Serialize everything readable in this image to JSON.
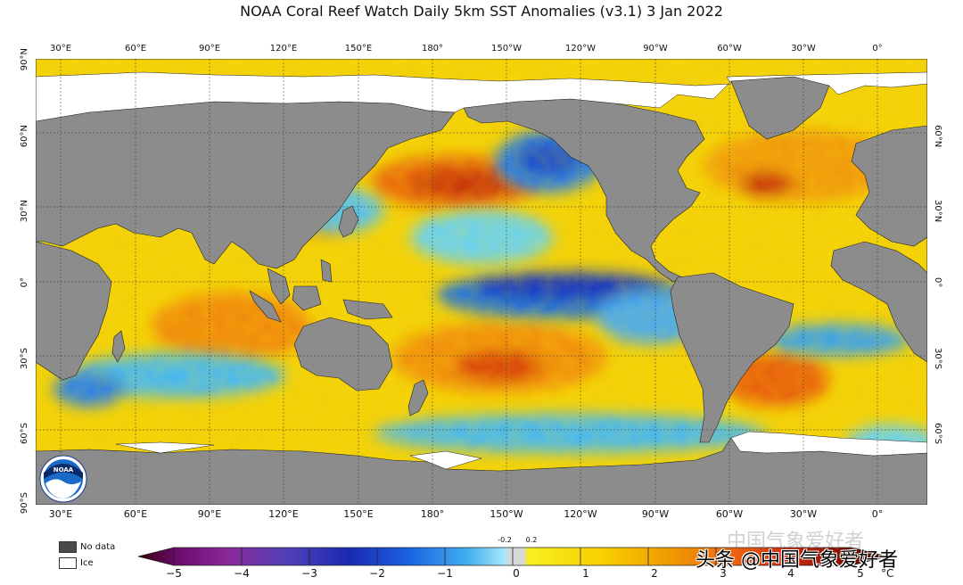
{
  "title": "NOAA Coral Reef Watch Daily 5km SST Anomalies  (v3.1)   3 Jan 2022",
  "map": {
    "lon_labels_top": [
      "30°E",
      "60°E",
      "90°E",
      "120°E",
      "150°E",
      "180°",
      "150°W",
      "120°W",
      "90°W",
      "60°W",
      "30°W",
      "0°"
    ],
    "lon_labels_bottom": [
      "30°E",
      "60°E",
      "90°E",
      "120°E",
      "150°E",
      "180°",
      "150°W",
      "120°W",
      "90°W",
      "60°W",
      "30°W",
      "0°"
    ],
    "lat_labels_left": [
      "90°N",
      "60°N",
      "30°N",
      "0°",
      "30°S",
      "60°S",
      "90°S"
    ],
    "lat_labels_right": [
      "60°N",
      "30°N",
      "0°",
      "30°S",
      "60°S"
    ],
    "colors": {
      "land": "#8c8c8c",
      "ice": "#ffffff",
      "no_data": "#4a4a4a",
      "ocean_base": "#f2d20a"
    }
  },
  "legend": {
    "no_data_label": "No data",
    "ice_label": "Ice"
  },
  "colorbar": {
    "ticks": [
      "−5",
      "−4",
      "−3",
      "−2",
      "−1",
      "0",
      "1",
      "2",
      "3",
      "4",
      "5"
    ],
    "small_ticks": [
      "-0.2",
      "0.2"
    ],
    "unit": "°C",
    "colors": [
      "#2a0018",
      "#7a0a7a",
      "#4b2fa8",
      "#1530b8",
      "#1a78e8",
      "#58c8f0",
      "#d8d8d8",
      "#f5ee10",
      "#f5b800",
      "#f07800",
      "#d83010",
      "#8a1000",
      "#300800"
    ]
  },
  "logo": {
    "text": "NOAA",
    "icon": "noaa-emblem-icon"
  },
  "watermark": {
    "text": "头条 @中国气象爱好者",
    "faint_text": "中国气象爱好者"
  }
}
